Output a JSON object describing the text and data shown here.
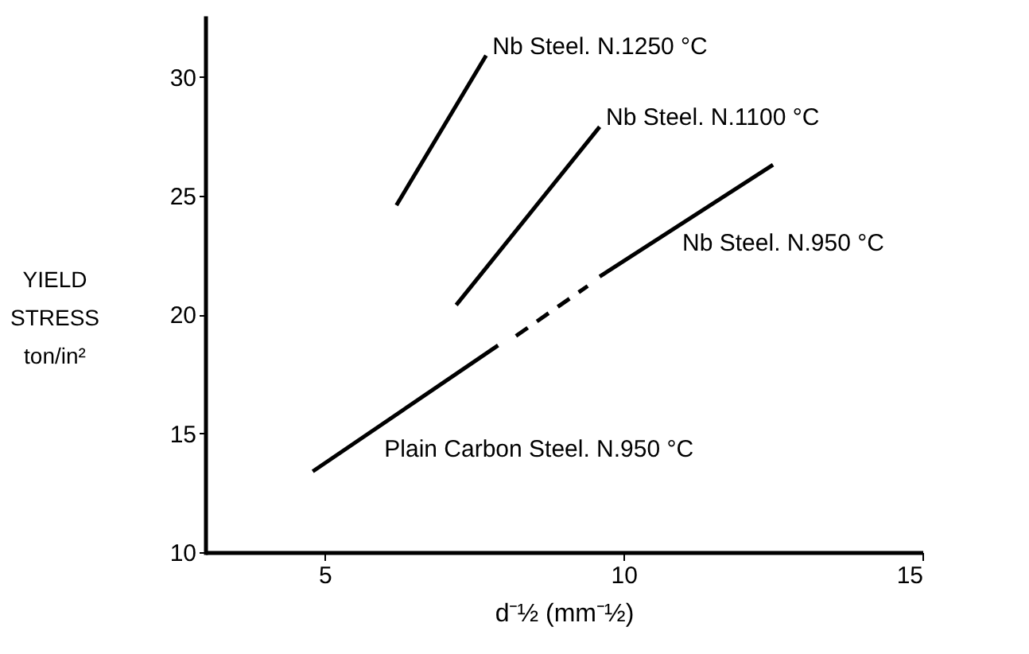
{
  "chart_data": {
    "type": "line",
    "xlabel": "d⁻½ (mm⁻½)",
    "ylabel": "YIELD\nSTRESS\nton/in²",
    "xlim": [
      3,
      15
    ],
    "ylim": [
      10,
      32.5
    ],
    "xticks": [
      5,
      10,
      15
    ],
    "yticks": [
      10,
      15,
      20,
      25,
      30
    ],
    "marker": "none",
    "line_style": "solid",
    "series": [
      {
        "name": "Nb Steel. N.1250 °C",
        "color": "#000000",
        "x": [
          6.2,
          7.7
        ],
        "values": [
          24.6,
          30.9
        ]
      },
      {
        "name": "Nb Steel. N.1100 °C",
        "color": "#000000",
        "x": [
          7.2,
          9.6
        ],
        "values": [
          20.4,
          27.9
        ]
      },
      {
        "name": "Nb Steel. N.950 °C",
        "color": "#000000",
        "x": [
          9.6,
          12.5
        ],
        "values": [
          21.6,
          26.3
        ]
      },
      {
        "color": "#000000",
        "x": [
          8.2,
          9.4
        ],
        "values": [
          19.1,
          21.2
        ],
        "line_style": "dashed"
      },
      {
        "name": "Plain Carbon Steel. N.950 °C",
        "color": "#000000",
        "x": [
          4.8,
          7.9
        ],
        "values": [
          13.4,
          18.7
        ]
      }
    ]
  }
}
